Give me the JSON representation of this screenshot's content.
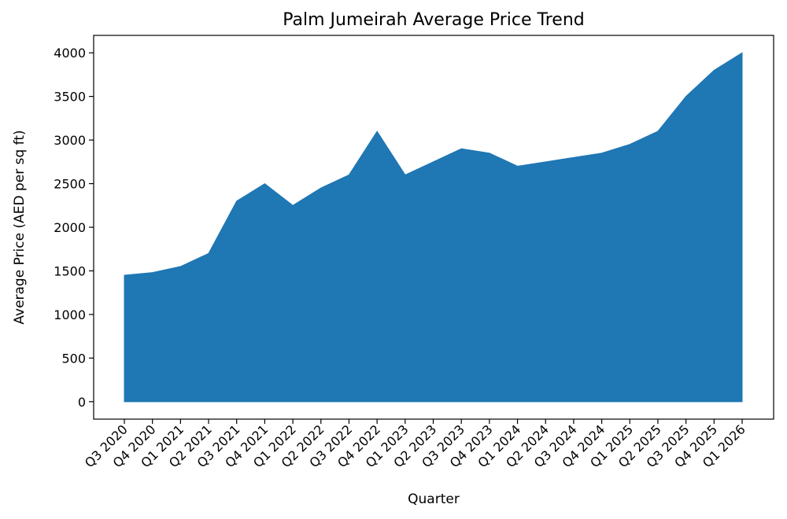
{
  "chart_data": {
    "type": "area",
    "title": "Palm Jumeirah Average Price Trend",
    "xlabel": "Quarter",
    "ylabel": "Average Price (AED per sq ft)",
    "categories": [
      "Q3 2020",
      "Q4 2020",
      "Q1 2021",
      "Q2 2021",
      "Q3 2021",
      "Q4 2021",
      "Q1 2022",
      "Q2 2022",
      "Q3 2022",
      "Q4 2022",
      "Q1 2023",
      "Q2 2023",
      "Q3 2023",
      "Q4 2023",
      "Q1 2024",
      "Q2 2024",
      "Q3 2024",
      "Q4 2024",
      "Q1 2025",
      "Q2 2025",
      "Q3 2025",
      "Q4 2025",
      "Q1 2026"
    ],
    "series": [
      {
        "values": [
          1450,
          1480,
          1550,
          1700,
          2300,
          2500,
          2250,
          2450,
          2600,
          3100,
          2600,
          2750,
          2900,
          2850,
          2700,
          2750,
          2800,
          2850,
          2950,
          3100,
          3500,
          3800,
          4000
        ],
        "color": "#1f77b4"
      }
    ],
    "yticks": [
      0,
      500,
      1000,
      1500,
      2000,
      2500,
      3000,
      3500,
      4000
    ],
    "ylim": [
      -200,
      4200
    ],
    "grid": false,
    "legend": "none"
  }
}
